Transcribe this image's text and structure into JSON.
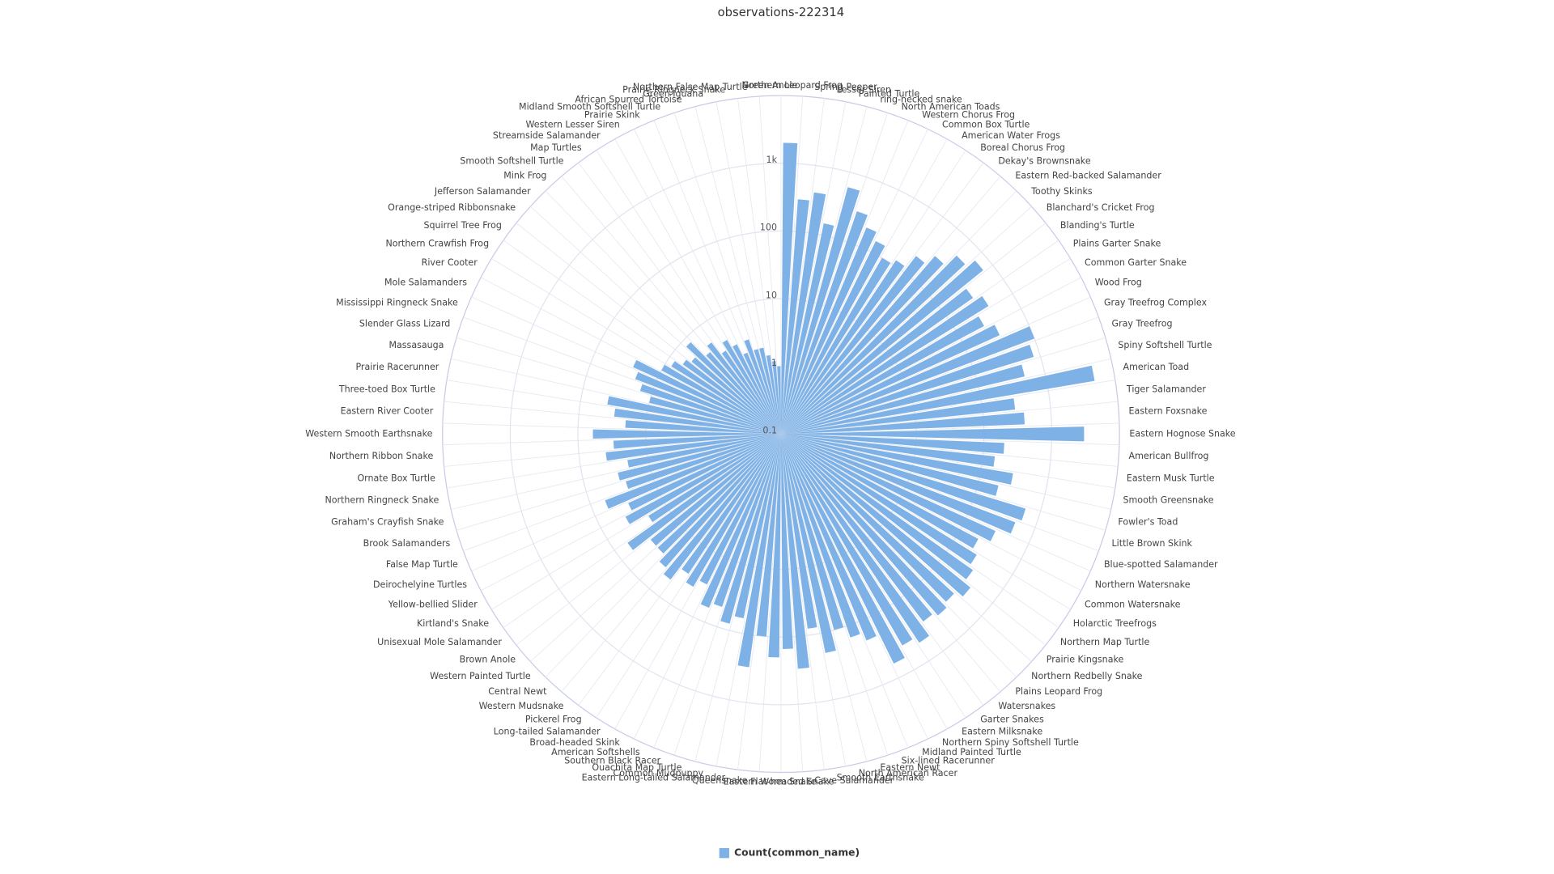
{
  "chart_data": {
    "type": "polar_bar",
    "title": "observations-222314",
    "categories": [
      "Northern Leopard Frog",
      "Spring Peeper",
      "Lesser Siren",
      "Painted Turtle",
      "ring-necked snake",
      "North American Toads",
      "Western Chorus Frog",
      "Common Box Turtle",
      "American Water Frogs",
      "Boreal Chorus Frog",
      "Dekay's Brownsnake",
      "Eastern Red-backed Salamander",
      "Toothy Skinks",
      "Blanchard's Cricket Frog",
      "Blanding's Turtle",
      "Plains Garter Snake",
      "Common Garter Snake",
      "Wood Frog",
      "Gray Treefrog Complex",
      "Gray Treefrog",
      "Spiny Softshell Turtle",
      "American Toad",
      "Tiger Salamander",
      "Eastern Foxsnake",
      "Eastern Hognose Snake",
      "American Bullfrog",
      "Eastern Musk Turtle",
      "Smooth Greensnake",
      "Fowler's Toad",
      "Little Brown Skink",
      "Blue-spotted Salamander",
      "Northern Watersnake",
      "Common Watersnake",
      "Holarctic Treefrogs",
      "Northern Map Turtle",
      "Prairie Kingsnake",
      "Northern Redbelly Snake",
      "Plains Leopard Frog",
      "Watersnakes",
      "Garter Snakes",
      "Eastern Milksnake",
      "Northern Spiny Softshell Turtle",
      "Midland Painted Turtle",
      "Six-lined Racerunner",
      "Eastern Newt",
      "North American Racer",
      "Smooth Earthsnake",
      "Cave Salamander",
      "Flat-headed Snake",
      "Eastern Worm Snake",
      "Queensnake",
      "Eastern Long-tailed Salamander",
      "Common Mudpuppy",
      "Ouachita Map Turtle",
      "Southern Black Racer",
      "American Softshells",
      "Broad-headed Skink",
      "Long-tailed Salamander",
      "Pickerel Frog",
      "Western Mudsnake",
      "Central Newt",
      "Western Painted Turtle",
      "Brown Anole",
      "Unisexual Mole Salamander",
      "Kirtland's Snake",
      "Yellow-bellied Slider",
      "Deirochelyine Turtles",
      "False Map Turtle",
      "Brook Salamanders",
      "Graham's Crayfish Snake",
      "Northern Ringneck Snake",
      "Ornate Box Turtle",
      "Northern Ribbon Snake",
      "Western Smooth Earthsnake",
      "Eastern River Cooter",
      "Three-toed Box Turtle",
      "Prairie Racerunner",
      "Massasauga",
      "Slender Glass Lizard",
      "Mississippi Ringneck Snake",
      "Mole Salamanders",
      "River Cooter",
      "Northern Crawfish Frog",
      "Squirrel Tree Frog",
      "Orange-striped Ribbonsnake",
      "Jefferson Salamander",
      "Mink Frog",
      "Smooth Softshell Turtle",
      "Map Turtles",
      "Streamside Salamander",
      "Western Lesser Siren",
      "Prairie Skink",
      "Midland Smooth Softshell Turtle",
      "African Spurred Tortoise",
      "Green Iguana",
      "Prairie Ringneck Snake",
      "Northern False Map Turtle",
      "Green Anole"
    ],
    "series": [
      {
        "name": "Count(common_name)",
        "color": "#7eb2e6",
        "values": [
          2000,
          300,
          400,
          150,
          600,
          300,
          200,
          150,
          100,
          120,
          200,
          300,
          500,
          700,
          300,
          400,
          250,
          350,
          1000,
          800,
          500,
          5000,
          300,
          400,
          3000,
          200,
          150,
          300,
          200,
          600,
          500,
          300,
          200,
          250,
          300,
          400,
          300,
          350,
          300,
          500,
          400,
          600,
          200,
          150,
          100,
          200,
          80,
          300,
          150,
          200,
          100,
          300,
          60,
          80,
          50,
          60,
          30,
          40,
          30,
          50,
          40,
          30,
          30,
          60,
          20,
          40,
          30,
          60,
          25,
          30,
          20,
          40,
          30,
          60,
          20,
          30,
          40,
          10,
          15,
          20,
          25,
          10,
          8,
          6,
          5,
          8,
          4,
          5,
          3,
          4,
          3,
          2,
          3,
          2,
          2,
          1.5,
          1.2,
          1
        ]
      }
    ],
    "rlim": [
      0.1,
      10000
    ],
    "rticks": [
      0.1,
      1,
      10,
      100,
      {
        "value": 1000,
        "label": "1k"
      }
    ],
    "log_scale": true,
    "grid": true,
    "legend": "bottom"
  }
}
